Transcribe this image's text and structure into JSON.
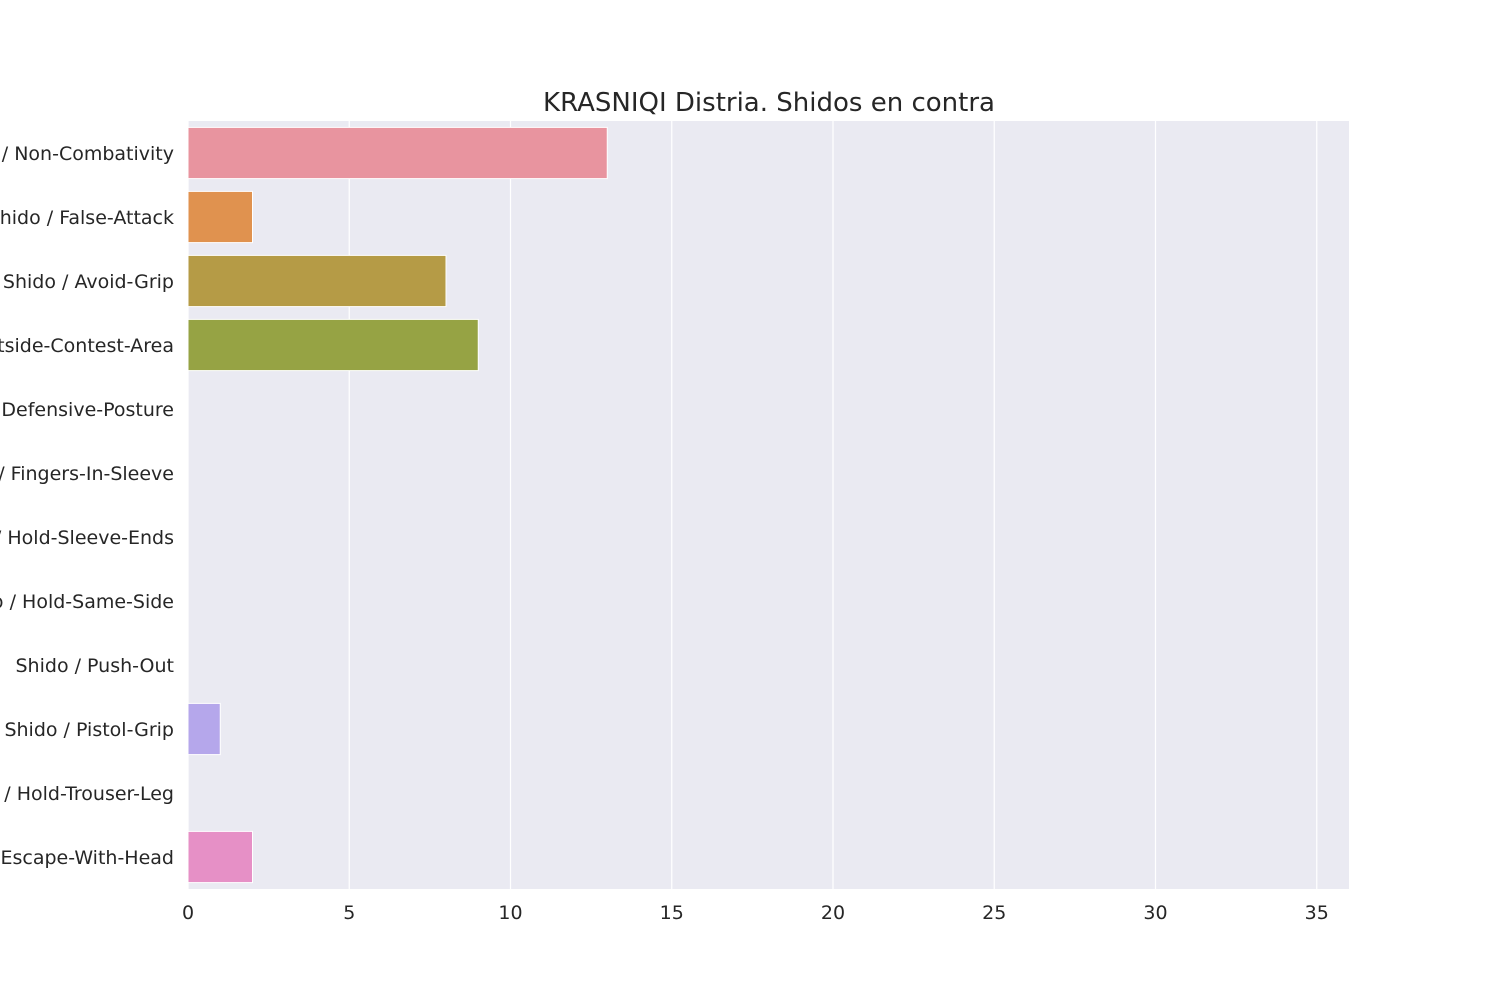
{
  "chart_data": {
    "type": "bar",
    "orientation": "horizontal",
    "title": "KRASNIQI Distria. Shidos en contra",
    "xlabel": "",
    "ylabel": "",
    "xlim": [
      0,
      36
    ],
    "x_ticks": [
      0,
      5,
      10,
      15,
      20,
      25,
      30,
      35
    ],
    "grid": true,
    "categories": [
      "Shido / Non-Combativity",
      "Shido / False-Attack",
      "Shido / Avoid-Grip",
      "Shido / Outside-Contest-Area",
      "Shido / Defensive-Posture",
      "Shido / Fingers-In-Sleeve",
      "Shido / Hold-Sleeve-Ends",
      "Shido / Hold-Same-Side",
      "Shido / Push-Out",
      "Shido / Pistol-Grip",
      "Shido / Hold-Trouser-Leg",
      "Shido / Escape-With-Head"
    ],
    "values": [
      13,
      2,
      8,
      9,
      0,
      0,
      0,
      0,
      0,
      1,
      0,
      2
    ],
    "colors": [
      "#e8949f",
      "#e0924f",
      "#b59b46",
      "#96a344",
      "#5fae4f",
      "#55ad8b",
      "#57aca2",
      "#5aaab8",
      "#65a6d4",
      "#b5a7eb",
      "#d998e6",
      "#e690c6"
    ],
    "background_color": "#eaeaf2",
    "grid_color": "#ffffff"
  }
}
